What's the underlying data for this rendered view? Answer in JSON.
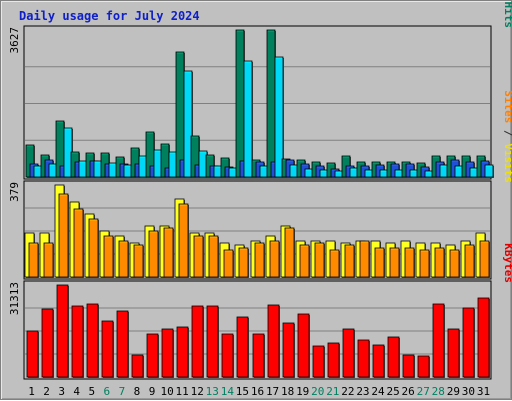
{
  "chart_data": {
    "type": "bar",
    "title": "Daily usage for July 2024",
    "categories": [
      "1",
      "2",
      "3",
      "4",
      "5",
      "6",
      "7",
      "8",
      "9",
      "10",
      "11",
      "12",
      "13",
      "14",
      "15",
      "16",
      "17",
      "18",
      "19",
      "20",
      "21",
      "22",
      "23",
      "24",
      "25",
      "26",
      "27",
      "28",
      "29",
      "30",
      "31"
    ],
    "weekend_days": [
      "6",
      "7",
      "13",
      "14",
      "20",
      "21",
      "27",
      "28"
    ],
    "panels": [
      {
        "id": "hits-panel",
        "max_label": "3627",
        "ymax": 3627,
        "side_label": [
          {
            "text": "Pages",
            "color": "#00c8f0"
          },
          {
            "text": " / ",
            "color": "#303030"
          },
          {
            "text": "Files",
            "color": "#2050d8"
          },
          {
            "text": " / ",
            "color": "#303030"
          },
          {
            "text": "Hits",
            "color": "#008060"
          }
        ],
        "series": [
          {
            "name": "Hits",
            "color": "#00805c",
            "values": [
              780,
              540,
              1380,
              610,
              600,
              580,
              500,
              720,
              1110,
              810,
              3090,
              1010,
              540,
              480,
              3627,
              420,
              3627,
              450,
              420,
              360,
              350,
              520,
              380,
              380,
              380,
              380,
              350,
              520,
              530,
              520,
              520
            ]
          },
          {
            "name": "Files",
            "color": "#2050d8",
            "values": [
              310,
              430,
              260,
              380,
              400,
              320,
              330,
              330,
              270,
              220,
              420,
              300,
              270,
              240,
              400,
              370,
              360,
              420,
              310,
              280,
              200,
              260,
              270,
              300,
              310,
              310,
              240,
              380,
              420,
              360,
              400
            ]
          },
          {
            "name": "Pages",
            "color": "#00d8f8",
            "values": [
              280,
              320,
              1200,
              390,
              390,
              340,
              300,
              530,
              660,
              620,
              2620,
              650,
              270,
              220,
              2870,
              280,
              2950,
              300,
              200,
              170,
              160,
              230,
              180,
              170,
              180,
              180,
              150,
              290,
              260,
              220,
              300
            ]
          }
        ]
      },
      {
        "id": "visits-panel",
        "max_label": "379",
        "ymax": 379,
        "side_label": [
          {
            "text": "Sites",
            "color": "#ff8000"
          },
          {
            "text": " / ",
            "color": "#303030"
          },
          {
            "text": "Visits",
            "color": "#f0e000"
          }
        ],
        "series": [
          {
            "name": "Visits",
            "color": "#ffff20",
            "values": [
              180,
              180,
              379,
              310,
              260,
              190,
              170,
              140,
              210,
              210,
              320,
              180,
              180,
              140,
              130,
              150,
              170,
              210,
              150,
              150,
              150,
              140,
              150,
              150,
              140,
              150,
              140,
              140,
              130,
              150,
              180
            ]
          },
          {
            "name": "Sites",
            "color": "#ff8a00",
            "values": [
              140,
              140,
              340,
              280,
              240,
              170,
              150,
              130,
              190,
              200,
              300,
              170,
              170,
              110,
              120,
              140,
              150,
              200,
              130,
              140,
              110,
              130,
              150,
              120,
              120,
              120,
              110,
              120,
              110,
              130,
              150
            ]
          }
        ]
      },
      {
        "id": "kbytes-panel",
        "max_label": "31313",
        "ymax": 31313,
        "side_label": [
          {
            "text": "KBytes",
            "color": "#e00000"
          }
        ],
        "series": [
          {
            "name": "KBytes",
            "color": "#ff0000",
            "values": [
              15500,
              23000,
              31313,
              24000,
              25000,
              19000,
              22500,
              7500,
              14500,
              16500,
              17000,
              24000,
              24000,
              14500,
              20500,
              14500,
              24500,
              18500,
              21500,
              10500,
              11500,
              16500,
              12500,
              11000,
              13500,
              7500,
              7000,
              25000,
              16500,
              23500,
              27000
            ]
          }
        ]
      }
    ]
  }
}
